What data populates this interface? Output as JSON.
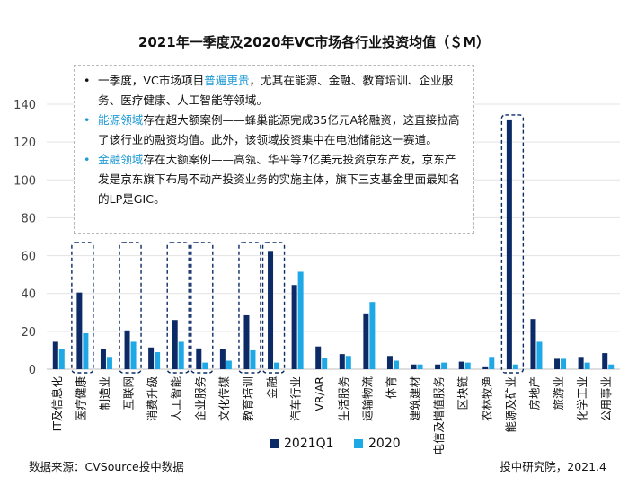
{
  "title": "2021年一季度及2020年VC市场各行业投资均值（＄M）",
  "callout": {
    "bullet": "•",
    "p1_pre": "一季度，VC市场项目",
    "p1_hl": "普遍更贵",
    "p1_post": "，尤其在能源、金融、教育培训、企业服务、医疗健康、人工智能等领域。",
    "p2_hl": "能源领域",
    "p2_post": "存在超大额案例——蜂巢能源完成35亿元A轮融资，这直接拉高了该行业的融资均值。此外，该领域投资集中在电池储能这一赛道。",
    "p3_hl": "金融领域",
    "p3_post": "存在大额案例——高瓴、华平等7亿美元投资京东产发，京东产发是京东旗下布局不动产投资业务的实施主体，旗下三支基金里面最知名的LP是GIC。"
  },
  "legend": {
    "s1": "2021Q1",
    "s2": "2020"
  },
  "footer": {
    "source": "数据来源：CVSource投中数据",
    "credit": "投中研究院，2021.4"
  },
  "colors": {
    "s1": "#0c2b66",
    "s2": "#1ea8e6",
    "dashed_box": "#0c2b66",
    "grid": "#e3e3e3"
  },
  "chart_data": {
    "type": "bar",
    "title": "2021年一季度及2020年VC市场各行业投资均值（＄M）",
    "categories": [
      "IT及信息化",
      "医疗健康",
      "制造业",
      "互联网",
      "消费升级",
      "人工智能",
      "企业服务",
      "文化传媒",
      "教育培训",
      "金融",
      "汽车行业",
      "VR/AR",
      "生活服务",
      "运输物流",
      "体育",
      "建筑建材",
      "电信及增值服务",
      "区块链",
      "农林牧渔",
      "能源及矿业",
      "房地产",
      "旅游业",
      "化学工业",
      "公用事业"
    ],
    "series": [
      {
        "name": "2021Q1",
        "values": [
          14.5,
          40.5,
          10.5,
          20.5,
          11.5,
          26,
          11,
          10.5,
          28.5,
          62.5,
          44.5,
          12,
          8,
          29.5,
          7,
          2.5,
          2.5,
          4,
          1.5,
          131.5,
          26.5,
          5.5,
          6.5,
          8.5
        ]
      },
      {
        "name": "2020",
        "values": [
          10.5,
          19,
          6.5,
          14.5,
          9,
          14.5,
          3.5,
          4.5,
          10,
          3.5,
          51.5,
          6,
          7,
          35.5,
          4.5,
          2.5,
          3.5,
          3.5,
          6.5,
          2.5,
          14.5,
          5.5,
          3.5,
          2.5
        ]
      }
    ],
    "highlighted": [
      "医疗健康",
      "互联网",
      "人工智能",
      "企业服务",
      "教育培训",
      "金融",
      "能源及矿业"
    ],
    "ylim": [
      0,
      140
    ],
    "yticks": [
      0,
      20,
      40,
      60,
      80,
      100,
      120,
      140
    ],
    "grid": true,
    "legend_position": "bottom"
  }
}
